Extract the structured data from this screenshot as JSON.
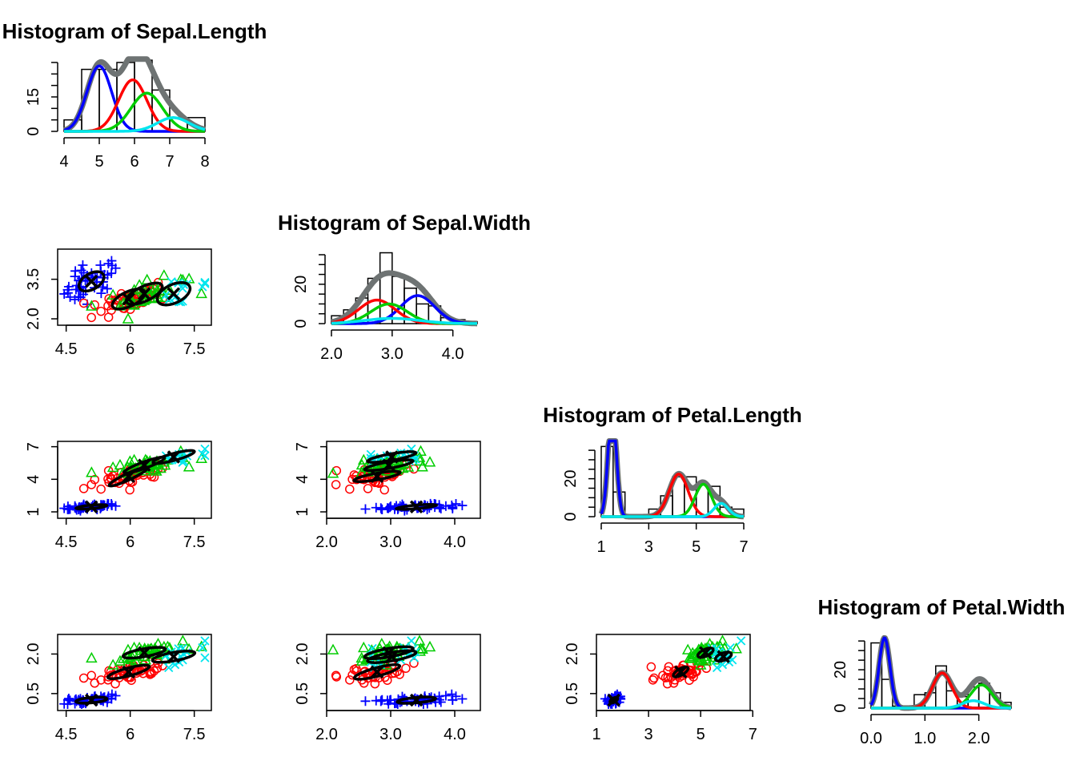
{
  "colors": {
    "k0": "#0000ff",
    "k1": "#ff0000",
    "k2": "#00cd00",
    "k3": "#00e5ee",
    "total": "#6e7373",
    "ellipse": "#000000"
  },
  "variables": [
    "Sepal.Length",
    "Sepal.Width",
    "Petal.Length",
    "Petal.Width"
  ],
  "chart_data": [
    {
      "type": "bar",
      "id": "hist-sl",
      "row": 0,
      "col": 0,
      "title": "Histogram of Sepal.Length",
      "xlim": [
        4,
        8
      ],
      "ylim": [
        0,
        30
      ],
      "xticks": [
        4,
        5,
        6,
        7,
        8
      ],
      "yticks": [
        0,
        15
      ],
      "breaks": [
        4,
        4.5,
        5,
        5.5,
        6,
        6.5,
        7,
        7.5,
        8
      ],
      "counts": [
        5,
        27,
        27,
        30,
        31,
        18,
        6,
        6
      ],
      "components": [
        {
          "color": "k0",
          "mean": 5.0,
          "sd": 0.35,
          "weight": 0.333
        },
        {
          "color": "k1",
          "mean": 5.95,
          "sd": 0.4,
          "weight": 0.3
        },
        {
          "color": "k2",
          "mean": 6.35,
          "sd": 0.45,
          "weight": 0.25
        },
        {
          "color": "k3",
          "mean": 7.1,
          "sd": 0.45,
          "weight": 0.09
        }
      ]
    },
    {
      "type": "bar",
      "id": "hist-sw",
      "row": 1,
      "col": 1,
      "title": "Histogram of Sepal.Width",
      "xlim": [
        2,
        4.4
      ],
      "ylim": [
        0,
        35
      ],
      "xticks": [
        2.0,
        3.0,
        4.0
      ],
      "yticks": [
        0,
        20
      ],
      "xticklabels": [
        "2.0",
        "3.0",
        "4.0"
      ],
      "breaks": [
        2,
        2.2,
        2.4,
        2.6,
        2.8,
        3,
        3.2,
        3.4,
        3.6,
        3.8,
        4,
        4.2,
        4.4
      ],
      "counts": [
        4,
        7,
        13,
        23,
        36,
        24,
        18,
        10,
        9,
        3,
        2,
        1
      ],
      "components": [
        {
          "color": "k0",
          "mean": 3.42,
          "sd": 0.28,
          "weight": 0.333
        },
        {
          "color": "k1",
          "mean": 2.75,
          "sd": 0.3,
          "weight": 0.3
        },
        {
          "color": "k2",
          "mean": 2.95,
          "sd": 0.3,
          "weight": 0.25
        },
        {
          "color": "k3",
          "mean": 3.0,
          "sd": 0.45,
          "weight": 0.1
        }
      ]
    },
    {
      "type": "bar",
      "id": "hist-pl",
      "row": 2,
      "col": 2,
      "title": "Histogram of Petal.Length",
      "xlim": [
        1,
        7
      ],
      "ylim": [
        0,
        38
      ],
      "xticks": [
        1,
        3,
        5,
        7
      ],
      "yticks": [
        0,
        20
      ],
      "breaks": [
        1,
        1.5,
        2,
        2.5,
        3,
        3.5,
        4,
        4.5,
        5,
        5.5,
        6,
        6.5,
        7
      ],
      "counts": [
        37,
        13,
        0,
        1,
        4,
        11,
        21,
        21,
        17,
        16,
        5,
        4
      ],
      "components": [
        {
          "color": "k0",
          "mean": 1.46,
          "sd": 0.17,
          "weight": 0.333
        },
        {
          "color": "k1",
          "mean": 4.26,
          "sd": 0.4,
          "weight": 0.3
        },
        {
          "color": "k2",
          "mean": 5.3,
          "sd": 0.35,
          "weight": 0.2
        },
        {
          "color": "k3",
          "mean": 6.05,
          "sd": 0.3,
          "weight": 0.07
        }
      ]
    },
    {
      "type": "bar",
      "id": "hist-pw",
      "row": 3,
      "col": 3,
      "title": "Histogram of Petal.Width",
      "xlim": [
        0,
        2.6
      ],
      "ylim": [
        0,
        38
      ],
      "xticks": [
        0.0,
        1.0,
        2.0
      ],
      "yticks": [
        0,
        20
      ],
      "xticklabels": [
        "0.0",
        "1.0",
        "2.0"
      ],
      "breaks": [
        0,
        0.2,
        0.4,
        0.6,
        0.8,
        1,
        1.2,
        1.4,
        1.6,
        1.8,
        2,
        2.2,
        2.4,
        2.6
      ],
      "counts": [
        34,
        15,
        1,
        1,
        7,
        8,
        22,
        9,
        6,
        11,
        13,
        8,
        3
      ],
      "components": [
        {
          "color": "k0",
          "mean": 0.25,
          "sd": 0.1,
          "weight": 0.333
        },
        {
          "color": "k1",
          "mean": 1.32,
          "sd": 0.18,
          "weight": 0.3
        },
        {
          "color": "k2",
          "mean": 2.05,
          "sd": 0.2,
          "weight": 0.22
        },
        {
          "color": "k3",
          "mean": 1.9,
          "sd": 0.2,
          "weight": 0.07
        }
      ]
    },
    {
      "type": "scatter",
      "id": "sc-sw-sl",
      "row": 1,
      "col": 0,
      "xlim": [
        4.3,
        7.9
      ],
      "ylim": [
        2.0,
        4.4
      ],
      "xticks": [
        4.5,
        6.0,
        7.5
      ],
      "yticks": [
        2.0,
        3.5
      ],
      "yticklabels": [
        "2.0",
        "3.5"
      ],
      "ellipses": [
        {
          "cx": 5.0,
          "cy": 3.42,
          "rx": 0.35,
          "ry": 0.3,
          "angle": 30
        },
        {
          "cx": 5.95,
          "cy": 2.75,
          "rx": 0.45,
          "ry": 0.28,
          "angle": 25
        },
        {
          "cx": 6.35,
          "cy": 2.95,
          "rx": 0.5,
          "ry": 0.28,
          "angle": 25
        },
        {
          "cx": 7.1,
          "cy": 2.95,
          "rx": 0.45,
          "ry": 0.35,
          "angle": 25
        }
      ]
    },
    {
      "type": "scatter",
      "id": "sc-pl-sl",
      "row": 2,
      "col": 0,
      "xlim": [
        4.3,
        7.9
      ],
      "ylim": [
        1,
        6.9
      ],
      "xticks": [
        4.5,
        6.0,
        7.5
      ],
      "yticks": [
        1,
        4,
        7
      ],
      "ellipses": [
        {
          "cx": 5.0,
          "cy": 1.46,
          "rx": 0.4,
          "ry": 0.16,
          "angle": 5
        },
        {
          "cx": 5.95,
          "cy": 4.26,
          "rx": 0.55,
          "ry": 0.3,
          "angle": 25
        },
        {
          "cx": 6.35,
          "cy": 5.3,
          "rx": 0.55,
          "ry": 0.3,
          "angle": 20
        },
        {
          "cx": 7.1,
          "cy": 6.05,
          "rx": 0.55,
          "ry": 0.32,
          "angle": 15
        }
      ]
    },
    {
      "type": "scatter",
      "id": "sc-pl-sw",
      "row": 2,
      "col": 1,
      "xlim": [
        2,
        4.4
      ],
      "ylim": [
        1,
        6.9
      ],
      "xticks": [
        2.0,
        3.0,
        4.0
      ],
      "yticks": [
        1,
        4,
        7
      ],
      "xticklabels": [
        "2.0",
        "3.0",
        "4.0"
      ],
      "ellipses": [
        {
          "cx": 3.42,
          "cy": 1.46,
          "rx": 0.35,
          "ry": 0.16,
          "angle": 5
        },
        {
          "cx": 2.75,
          "cy": 4.26,
          "rx": 0.4,
          "ry": 0.3,
          "angle": 10
        },
        {
          "cx": 2.95,
          "cy": 5.3,
          "rx": 0.42,
          "ry": 0.3,
          "angle": 10
        },
        {
          "cx": 3.0,
          "cy": 6.05,
          "rx": 0.42,
          "ry": 0.3,
          "angle": 10
        }
      ]
    },
    {
      "type": "scatter",
      "id": "sc-pw-sl",
      "row": 3,
      "col": 0,
      "xlim": [
        4.3,
        7.9
      ],
      "ylim": [
        0.1,
        2.5
      ],
      "xticks": [
        4.5,
        6.0,
        7.5
      ],
      "yticks": [
        0.5,
        2.0
      ],
      "yticklabels": [
        "0.5",
        "2.0"
      ],
      "ellipses": [
        {
          "cx": 5.0,
          "cy": 0.25,
          "rx": 0.4,
          "ry": 0.1,
          "angle": 5
        },
        {
          "cx": 5.95,
          "cy": 1.32,
          "rx": 0.55,
          "ry": 0.15,
          "angle": 15
        },
        {
          "cx": 6.35,
          "cy": 2.05,
          "rx": 0.55,
          "ry": 0.15,
          "angle": 10
        },
        {
          "cx": 7.1,
          "cy": 1.9,
          "rx": 0.55,
          "ry": 0.16,
          "angle": 10
        }
      ]
    },
    {
      "type": "scatter",
      "id": "sc-pw-sw",
      "row": 3,
      "col": 1,
      "xlim": [
        2,
        4.4
      ],
      "ylim": [
        0.1,
        2.5
      ],
      "xticks": [
        2.0,
        3.0,
        4.0
      ],
      "yticks": [
        0.5,
        2.0
      ],
      "xticklabels": [
        "2.0",
        "3.0",
        "4.0"
      ],
      "yticklabels": [
        "0.5",
        "2.0"
      ],
      "ellipses": [
        {
          "cx": 3.42,
          "cy": 0.25,
          "rx": 0.33,
          "ry": 0.1,
          "angle": 5
        },
        {
          "cx": 2.75,
          "cy": 1.32,
          "rx": 0.4,
          "ry": 0.16,
          "angle": 15
        },
        {
          "cx": 2.95,
          "cy": 2.05,
          "rx": 0.42,
          "ry": 0.16,
          "angle": 10
        },
        {
          "cx": 3.0,
          "cy": 1.9,
          "rx": 0.42,
          "ry": 0.16,
          "angle": 10
        }
      ]
    },
    {
      "type": "scatter",
      "id": "sc-pw-pl",
      "row": 3,
      "col": 2,
      "xlim": [
        1,
        6.9
      ],
      "ylim": [
        0.1,
        2.5
      ],
      "xticks": [
        1,
        3,
        5,
        7
      ],
      "yticks": [
        0.5,
        2.0
      ],
      "yticklabels": [
        "0.5",
        "2.0"
      ],
      "ellipses": [
        {
          "cx": 1.46,
          "cy": 0.25,
          "rx": 0.18,
          "ry": 0.08,
          "angle": 30
        },
        {
          "cx": 4.26,
          "cy": 1.32,
          "rx": 0.35,
          "ry": 0.12,
          "angle": 30
        },
        {
          "cx": 5.3,
          "cy": 2.05,
          "rx": 0.35,
          "ry": 0.13,
          "angle": 25
        },
        {
          "cx": 6.05,
          "cy": 1.9,
          "rx": 0.35,
          "ry": 0.14,
          "angle": 20
        }
      ]
    }
  ]
}
